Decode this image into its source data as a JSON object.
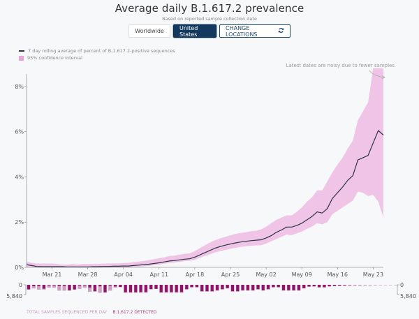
{
  "header": {
    "title": "Average daily B.1.617.2 prevalence",
    "subtitle": "Based on reported sample collection date"
  },
  "location_buttons": {
    "worldwide": "Worldwide",
    "united_states": "United States",
    "change_locations": "CHANGE LOCATIONS",
    "selected": "United States"
  },
  "legend": {
    "line_label": "7 day rolling average of percent of B.1.617.2-positive sequences",
    "band_label": "95% confidence interval"
  },
  "bottom_legend": {
    "total_label": "TOTAL SAMPLES SEQUENCED PER DAY",
    "detected_label": "B.1.617.2 DETECTED"
  },
  "colors": {
    "line": "#2b3447",
    "band": "#f0c4e6",
    "bar_total": "#c690b8",
    "bar_detected": "#8f1366",
    "button_selected": "#133a5e"
  },
  "chart_data": [
    {
      "type": "line",
      "title": "Average daily B.1.617.2 prevalence",
      "subtitle": "Based on reported sample collection date",
      "xlabel": "",
      "ylabel": "",
      "x_start": "Mar 16",
      "x_end": "May 26",
      "x_tick_labels": [
        "Mar 21",
        "Mar 28",
        "Apr 04",
        "Apr 11",
        "Apr 18",
        "Apr 25",
        "May 02",
        "May 09",
        "May 16",
        "May 23"
      ],
      "x_tick_day_index": [
        5,
        12,
        19,
        26,
        33,
        40,
        47,
        54,
        61,
        68
      ],
      "y_tick_labels": [
        "0%",
        "2%",
        "4%",
        "6%",
        "8%"
      ],
      "y_ticks": [
        0,
        2,
        4,
        6,
        8
      ],
      "ylim": [
        0,
        8.8
      ],
      "grid": false,
      "annotation": "Latest dates are noisy due to fewer samples",
      "series": [
        {
          "name": "7 day rolling average of percent of B.1.617.2-positive sequences",
          "values": [
            0.12,
            0.08,
            0.04,
            0.03,
            0.03,
            0.03,
            0.03,
            0.03,
            0.02,
            0.02,
            0.02,
            0.02,
            0.02,
            0.03,
            0.03,
            0.04,
            0.04,
            0.05,
            0.05,
            0.06,
            0.06,
            0.08,
            0.1,
            0.12,
            0.14,
            0.17,
            0.2,
            0.24,
            0.28,
            0.3,
            0.33,
            0.36,
            0.38,
            0.45,
            0.55,
            0.65,
            0.75,
            0.85,
            0.92,
            0.98,
            1.03,
            1.08,
            1.12,
            1.15,
            1.18,
            1.2,
            1.22,
            1.3,
            1.4,
            1.55,
            1.65,
            1.78,
            1.78,
            1.85,
            1.95,
            2.1,
            2.25,
            2.45,
            2.4,
            2.6,
            3.05,
            3.3,
            3.55,
            3.85,
            4.05,
            4.75,
            4.85,
            4.95,
            5.5,
            6.05,
            5.85
          ]
        }
      ],
      "confidence_interval": {
        "name": "95% confidence interval",
        "lower": [
          0.02,
          0.0,
          0.0,
          0.0,
          0.0,
          0.0,
          0.0,
          0.0,
          0.0,
          0.0,
          0.0,
          0.0,
          0.0,
          0.0,
          0.0,
          0.0,
          0.0,
          0.0,
          0.0,
          0.0,
          0.0,
          0.02,
          0.03,
          0.05,
          0.07,
          0.09,
          0.12,
          0.16,
          0.19,
          0.21,
          0.24,
          0.27,
          0.29,
          0.33,
          0.42,
          0.5,
          0.58,
          0.66,
          0.72,
          0.77,
          0.82,
          0.86,
          0.9,
          0.93,
          0.95,
          0.97,
          0.98,
          1.05,
          1.15,
          1.25,
          1.35,
          1.45,
          1.42,
          1.5,
          1.58,
          1.7,
          1.8,
          1.95,
          1.9,
          2.0,
          2.35,
          2.5,
          2.65,
          2.8,
          2.95,
          3.35,
          3.3,
          3.15,
          3.2,
          2.9,
          2.2
        ],
        "upper": [
          0.25,
          0.2,
          0.17,
          0.17,
          0.17,
          0.17,
          0.15,
          0.12,
          0.12,
          0.15,
          0.12,
          0.15,
          0.15,
          0.15,
          0.15,
          0.16,
          0.17,
          0.18,
          0.18,
          0.19,
          0.2,
          0.23,
          0.26,
          0.28,
          0.32,
          0.36,
          0.4,
          0.44,
          0.5,
          0.52,
          0.56,
          0.6,
          0.62,
          0.72,
          0.85,
          0.98,
          1.1,
          1.2,
          1.28,
          1.35,
          1.42,
          1.48,
          1.52,
          1.55,
          1.6,
          1.62,
          1.68,
          1.8,
          1.95,
          2.1,
          2.2,
          2.3,
          2.3,
          2.45,
          2.65,
          2.9,
          3.1,
          3.4,
          3.4,
          3.8,
          4.2,
          4.55,
          4.85,
          5.25,
          5.6,
          6.5,
          6.9,
          7.3,
          8.8,
          8.8,
          8.8
        ]
      }
    },
    {
      "type": "bar",
      "title": "Total samples sequenced per day / B.1.617.2 detected",
      "ylim": [
        0,
        5840
      ],
      "y_tick_labels": [
        "0",
        "5,840"
      ],
      "series": [
        {
          "name": "TOTAL SAMPLES SEQUENCED PER DAY",
          "values": [
            2900,
            2200,
            2900,
            2900,
            1700,
            1700,
            3500,
            3500,
            3500,
            2800,
            2500,
            1700,
            4100,
            4100,
            4800,
            4800,
            3500,
            1700,
            1500,
            4800,
            4800,
            4800,
            4800,
            4800,
            2800,
            2500,
            4800,
            4800,
            4800,
            4800,
            4800,
            2800,
            1500,
            1500,
            4100,
            4100,
            4100,
            3500,
            2800,
            2200,
            4100,
            4100,
            3500,
            3500,
            3500,
            2800,
            3500,
            2800,
            1500,
            1500,
            3500,
            3500,
            3500,
            3500,
            2200,
            1200,
            1000,
            1600,
            1600,
            1000,
            800,
            700,
            600,
            500,
            400,
            350,
            300,
            250,
            250,
            200,
            150,
            100,
            60
          ]
        },
        {
          "name": "B.1.617.2 DETECTED",
          "values": [
            2700,
            800,
            700,
            2300,
            400,
            350,
            700,
            600,
            3300,
            2800,
            450,
            300,
            1600,
            3800,
            900,
            4400,
            500,
            1000,
            1200,
            4400,
            4400,
            4400,
            4300,
            4300,
            2500,
            2400,
            4400,
            4300,
            4300,
            4300,
            4300,
            2600,
            1400,
            1400,
            3800,
            3800,
            3800,
            3300,
            2600,
            2000,
            3800,
            3800,
            3300,
            3300,
            3300,
            2600,
            3300,
            2600,
            1400,
            1400,
            3300,
            3300,
            3300,
            3300,
            2000,
            1000,
            900,
            1400,
            1400,
            900,
            700,
            600,
            500,
            400,
            300,
            250,
            200,
            150,
            120,
            80,
            50,
            30,
            10
          ]
        }
      ]
    }
  ]
}
